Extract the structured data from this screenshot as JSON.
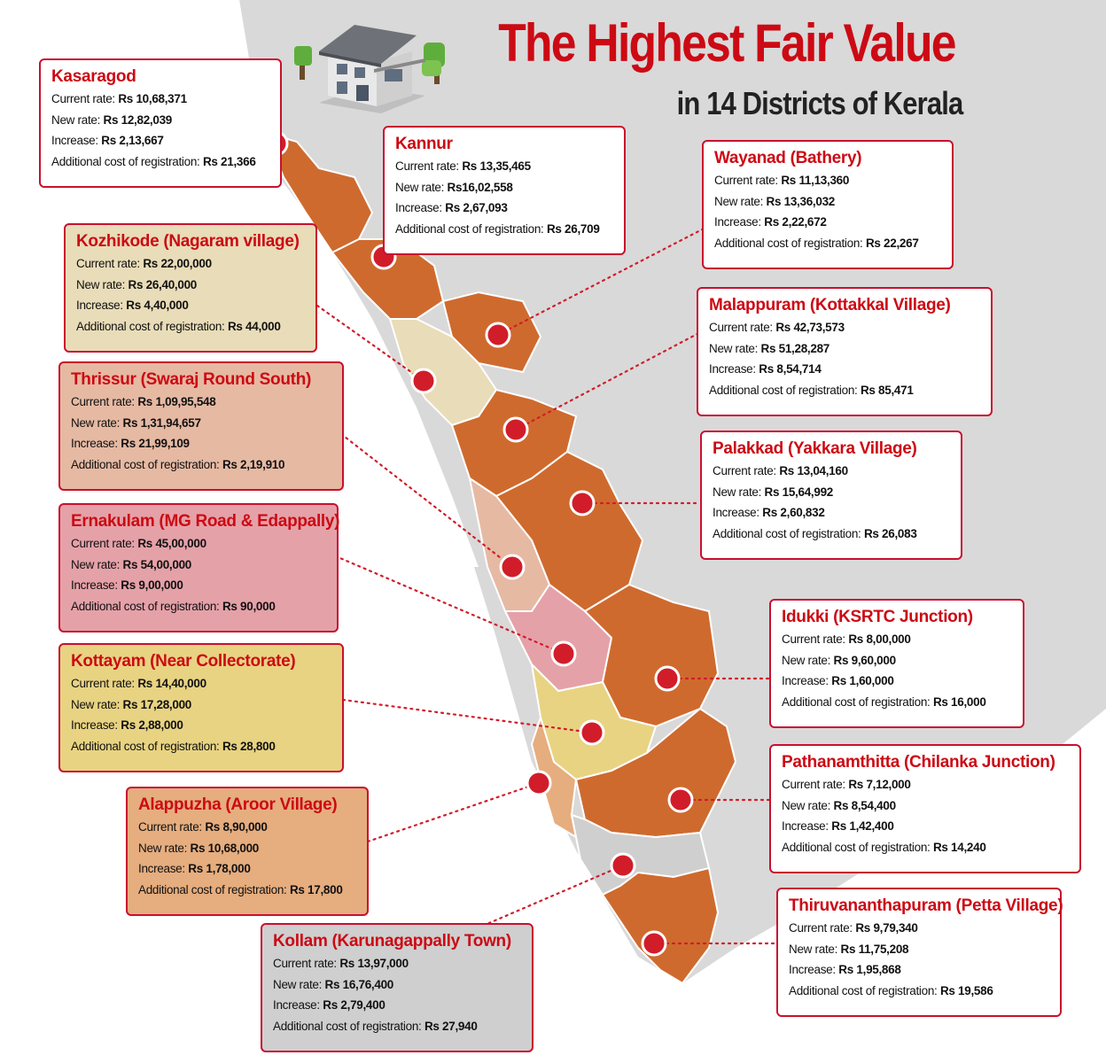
{
  "title": {
    "line1": "The Highest Fair Value",
    "line2": "in 14 Districts of Kerala"
  },
  "labels": {
    "current": "Current rate:",
    "new": "New rate:",
    "increase": "Increase:",
    "additional": "Additional cost of registration:"
  },
  "colors": {
    "accent_red": "#cc0a14",
    "marker": "#d11d2a",
    "land_gray": "#d9d9d9",
    "district_orange": "#cf6a2e",
    "district_cream": "#e9dcb8",
    "district_peach": "#e6b9a3",
    "district_pink": "#e5a1a8",
    "district_yellow": "#e8d382",
    "district_tan": "#e6ad7e",
    "district_gray": "#cfcfcf"
  },
  "districts": [
    {
      "name": "Kasaragod",
      "current": "Rs 10,68,371",
      "new": "Rs 12,82,039",
      "increase": "Rs 2,13,667",
      "additional": "Rs 21,366",
      "fill": "#ffffff"
    },
    {
      "name": "Kannur",
      "current": "Rs 13,35,465",
      "new": "Rs16,02,558",
      "increase": "Rs 2,67,093",
      "additional": "Rs 26,709",
      "fill": "#ffffff"
    },
    {
      "name": "Wayanad (Bathery)",
      "current": "Rs 11,13,360",
      "new": "Rs 13,36,032",
      "increase": "Rs 2,22,672",
      "additional": "Rs 22,267",
      "fill": "#ffffff"
    },
    {
      "name": "Kozhikode (Nagaram village)",
      "current": "Rs 22,00,000",
      "new": "Rs 26,40,000",
      "increase": "Rs 4,40,000",
      "additional": "Rs 44,000",
      "fill": "#e9dcb8"
    },
    {
      "name": "Malappuram (Kottakkal Village)",
      "current": "Rs 42,73,573",
      "new": "Rs 51,28,287",
      "increase": "Rs 8,54,714",
      "additional": "Rs 85,471",
      "fill": "#ffffff"
    },
    {
      "name": "Thrissur (Swaraj Round South)",
      "current": "Rs 1,09,95,548",
      "new": "Rs 1,31,94,657",
      "increase": "Rs 21,99,109",
      "additional": "Rs 2,19,910",
      "fill": "#e6b9a3"
    },
    {
      "name": "Palakkad (Yakkara Village)",
      "current": "Rs 13,04,160",
      "new": "Rs 15,64,992",
      "increase": "Rs 2,60,832",
      "additional": "Rs 26,083",
      "fill": "#ffffff"
    },
    {
      "name": "Ernakulam (MG Road & Edappally)",
      "current": "Rs 45,00,000",
      "new": "Rs 54,00,000",
      "increase": "Rs 9,00,000",
      "additional": "Rs 90,000",
      "fill": "#e5a1a8"
    },
    {
      "name": "Idukki (KSRTC Junction)",
      "current": "Rs 8,00,000",
      "new": "Rs 9,60,000",
      "increase": "Rs 1,60,000",
      "additional": "Rs 16,000",
      "fill": "#ffffff"
    },
    {
      "name": "Kottayam (Near Collectorate)",
      "current": "Rs 14,40,000",
      "new": "Rs 17,28,000",
      "increase": "Rs 2,88,000",
      "additional": "Rs 28,800",
      "fill": "#e8d382"
    },
    {
      "name": "Pathanamthitta (Chilanka Junction)",
      "current": "Rs 7,12,000",
      "new": "Rs 8,54,400",
      "increase": "Rs 1,42,400",
      "additional": "Rs 14,240",
      "fill": "#ffffff"
    },
    {
      "name": "Alappuzha (Aroor Village)",
      "current": "Rs 8,90,000",
      "new": "Rs 10,68,000",
      "increase": "Rs 1,78,000",
      "additional": "Rs 17,800",
      "fill": "#e6ad7e"
    },
    {
      "name": "Kollam (Karunagappally Town)",
      "current": "Rs 13,97,000",
      "new": "Rs 16,76,400",
      "increase": "Rs 2,79,400",
      "additional": "Rs 27,940",
      "fill": "#cfcfcf"
    },
    {
      "name": "Thiruvananthapuram (Petta Village)",
      "current": "Rs 9,79,340",
      "new": "Rs 11,75,208",
      "increase": "Rs 1,95,868",
      "additional": "Rs 19,586",
      "fill": "#ffffff"
    }
  ]
}
